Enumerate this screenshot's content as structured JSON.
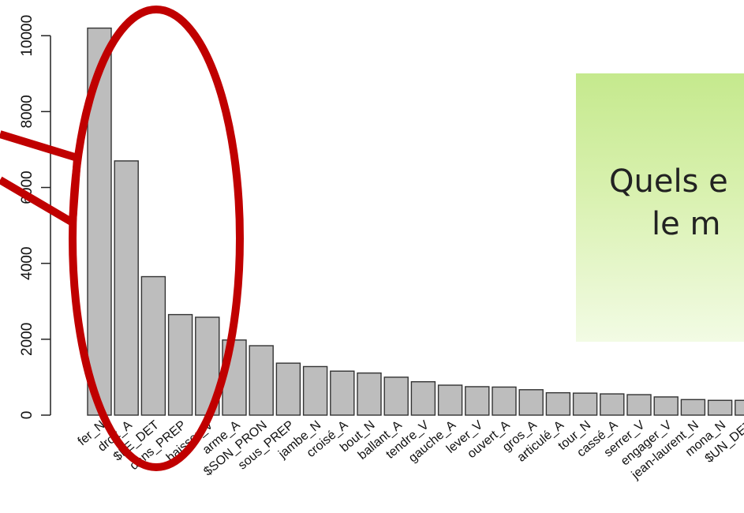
{
  "chart_data": {
    "type": "bar",
    "categories": [
      "fer_N",
      "droit_A",
      "$LE_DET",
      "dans_PREP",
      "baisser_V",
      "arme_A",
      "$SON_PRON",
      "sous_PREP",
      "jambe_N",
      "croisé_A",
      "bout_N",
      "ballant_A",
      "tendre_V",
      "gauche_A",
      "lever_V",
      "ouvert_A",
      "gros_A",
      "articulé_A",
      "tour_N",
      "cassé_A",
      "serrer_V",
      "engager_V",
      "jean-laurent_N",
      "mona_N",
      "$UN_DET"
    ],
    "values": [
      10200,
      6700,
      3650,
      2650,
      2580,
      1980,
      1830,
      1370,
      1280,
      1160,
      1110,
      1000,
      880,
      790,
      750,
      740,
      670,
      590,
      580,
      560,
      540,
      480,
      410,
      390,
      390
    ],
    "title": "",
    "xlabel": "",
    "ylabel": "",
    "ylim": [
      0,
      10400
    ],
    "yticks": [
      0,
      2000,
      4000,
      6000,
      8000,
      10000
    ],
    "grid": false,
    "bar_color": "#bdbdbd",
    "annotation_color": "#c00000"
  },
  "callout": {
    "line1": "Quels e",
    "line2": "le m",
    "bg_color": "#c9eb94"
  }
}
